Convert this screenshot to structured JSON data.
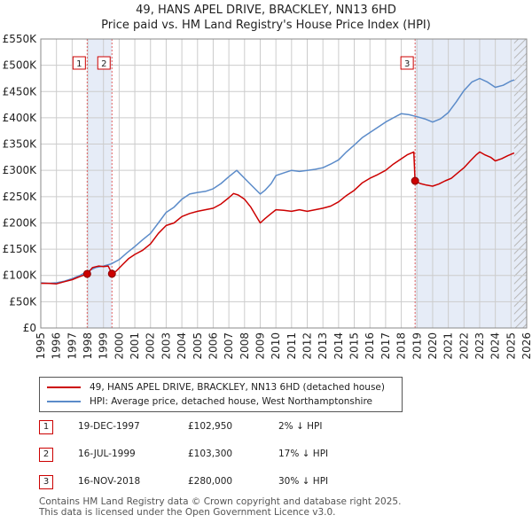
{
  "title_line1": "49, HANS APEL DRIVE, BRACKLEY, NN13 6HD",
  "title_line2": "Price paid vs. HM Land Registry's House Price Index (HPI)",
  "chart_data": {
    "type": "line",
    "title": "49, HANS APEL DRIVE, BRACKLEY, NN13 6HD — Price paid vs. HM Land Registry's House Price Index (HPI)",
    "xlabel": "",
    "ylabel": "",
    "xlim": [
      1995,
      2026
    ],
    "ylim": [
      0,
      550000
    ],
    "x_ticks": [
      "1995",
      "1996",
      "1997",
      "1998",
      "1999",
      "2000",
      "2001",
      "2002",
      "2003",
      "2004",
      "2005",
      "2006",
      "2007",
      "2008",
      "2009",
      "2010",
      "2011",
      "2012",
      "2013",
      "2014",
      "2015",
      "2016",
      "2017",
      "2018",
      "2019",
      "2020",
      "2021",
      "2022",
      "2023",
      "2024",
      "2025",
      "2026"
    ],
    "y_ticks": [
      {
        "value": 0,
        "label": "£0"
      },
      {
        "value": 50000,
        "label": "£50K"
      },
      {
        "value": 100000,
        "label": "£100K"
      },
      {
        "value": 150000,
        "label": "£150K"
      },
      {
        "value": 200000,
        "label": "£200K"
      },
      {
        "value": 250000,
        "label": "£250K"
      },
      {
        "value": 300000,
        "label": "£300K"
      },
      {
        "value": 350000,
        "label": "£350K"
      },
      {
        "value": 400000,
        "label": "£400K"
      },
      {
        "value": 450000,
        "label": "£450K"
      },
      {
        "value": 500000,
        "label": "£500K"
      },
      {
        "value": 550000,
        "label": "£550K"
      }
    ],
    "grid": true,
    "shaded_spans": [
      [
        1997.96,
        1999.54
      ],
      [
        2018.88,
        2026
      ]
    ],
    "hatched_span": [
      2025.2,
      2026
    ],
    "series": [
      {
        "name": "49, HANS APEL DRIVE, BRACKLEY, NN13 6HD (detached house)",
        "color": "#cc0000",
        "x": [
          1995.0,
          1995.5,
          1996.0,
          1996.5,
          1997.0,
          1997.5,
          1997.96,
          1998.3,
          1998.7,
          1999.0,
          1999.3,
          1999.54,
          1999.8,
          2000.2,
          2000.6,
          2001.0,
          2001.5,
          2002.0,
          2002.5,
          2003.0,
          2003.5,
          2004.0,
          2004.5,
          2005.0,
          2005.5,
          2006.0,
          2006.5,
          2007.0,
          2007.3,
          2007.6,
          2008.0,
          2008.4,
          2008.8,
          2009.0,
          2009.3,
          2009.7,
          2010.0,
          2010.5,
          2011.0,
          2011.5,
          2012.0,
          2012.5,
          2013.0,
          2013.5,
          2014.0,
          2014.5,
          2015.0,
          2015.5,
          2016.0,
          2016.5,
          2017.0,
          2017.5,
          2018.0,
          2018.4,
          2018.8,
          2018.88,
          2019.2,
          2019.6,
          2020.0,
          2020.4,
          2020.8,
          2021.2,
          2021.6,
          2022.0,
          2022.4,
          2022.8,
          2023.0,
          2023.3,
          2023.7,
          2024.0,
          2024.4,
          2024.8,
          2025.2
        ],
        "values": [
          85000,
          85000,
          84000,
          88000,
          92000,
          98000,
          102950,
          115000,
          118000,
          117000,
          118000,
          103300,
          108000,
          120000,
          132000,
          140000,
          148000,
          160000,
          180000,
          195000,
          200000,
          212000,
          218000,
          222000,
          225000,
          228000,
          236000,
          248000,
          256000,
          253000,
          245000,
          230000,
          210000,
          200000,
          208000,
          218000,
          225000,
          224000,
          222000,
          225000,
          222000,
          225000,
          228000,
          232000,
          240000,
          252000,
          262000,
          276000,
          285000,
          292000,
          300000,
          312000,
          322000,
          330000,
          335000,
          280000,
          275000,
          272000,
          270000,
          274000,
          280000,
          285000,
          295000,
          305000,
          318000,
          330000,
          335000,
          330000,
          325000,
          318000,
          322000,
          328000,
          333000
        ]
      },
      {
        "name": "HPI: Average price, detached house, West Northamptonshire",
        "color": "#5b8bc9",
        "x": [
          1995.0,
          1995.5,
          1996.0,
          1996.5,
          1997.0,
          1997.5,
          1998.0,
          1998.5,
          1999.0,
          1999.5,
          2000.0,
          2000.5,
          2001.0,
          2001.5,
          2002.0,
          2002.5,
          2003.0,
          2003.5,
          2004.0,
          2004.5,
          2005.0,
          2005.5,
          2006.0,
          2006.5,
          2007.0,
          2007.5,
          2008.0,
          2008.5,
          2009.0,
          2009.3,
          2009.7,
          2010.0,
          2010.5,
          2011.0,
          2011.5,
          2012.0,
          2012.5,
          2013.0,
          2013.5,
          2014.0,
          2014.5,
          2015.0,
          2015.5,
          2016.0,
          2016.5,
          2017.0,
          2017.5,
          2018.0,
          2018.5,
          2019.0,
          2019.5,
          2020.0,
          2020.5,
          2021.0,
          2021.5,
          2022.0,
          2022.5,
          2023.0,
          2023.5,
          2024.0,
          2024.5,
          2025.0,
          2025.2
        ],
        "values": [
          86000,
          85000,
          86000,
          89000,
          94000,
          100000,
          108000,
          115000,
          118000,
          122000,
          130000,
          143000,
          155000,
          168000,
          180000,
          200000,
          220000,
          230000,
          245000,
          255000,
          258000,
          260000,
          265000,
          275000,
          288000,
          300000,
          285000,
          270000,
          255000,
          262000,
          275000,
          290000,
          295000,
          300000,
          298000,
          300000,
          302000,
          305000,
          312000,
          320000,
          335000,
          348000,
          362000,
          372000,
          382000,
          392000,
          400000,
          408000,
          406000,
          402000,
          398000,
          392000,
          398000,
          410000,
          430000,
          452000,
          468000,
          475000,
          468000,
          458000,
          462000,
          470000,
          472000
        ]
      }
    ],
    "markers": [
      {
        "label": "1",
        "x": 1997.96,
        "value": 102950
      },
      {
        "label": "2",
        "x": 1999.54,
        "value": 103300
      },
      {
        "label": "3",
        "x": 2018.88,
        "value": 280000
      }
    ]
  },
  "legend": {
    "red_label": "49, HANS APEL DRIVE, BRACKLEY, NN13 6HD (detached house)",
    "blue_label": "HPI: Average price, detached house, West Northamptonshire"
  },
  "sales": [
    {
      "num": "1",
      "date": "19-DEC-1997",
      "price": "£102,950",
      "pct": "2% ↓ HPI"
    },
    {
      "num": "2",
      "date": "16-JUL-1999",
      "price": "£103,300",
      "pct": "17% ↓ HPI"
    },
    {
      "num": "3",
      "date": "16-NOV-2018",
      "price": "£280,000",
      "pct": "30% ↓ HPI"
    }
  ],
  "footer": {
    "line1": "Contains HM Land Registry data © Crown copyright and database right 2025.",
    "line2": "This data is licensed under the Open Government Licence v3.0."
  },
  "colors": {
    "red": "#cc0000",
    "blue": "#5b8bc9",
    "shade": "#e6ecf7",
    "grid": "#cccccc"
  }
}
